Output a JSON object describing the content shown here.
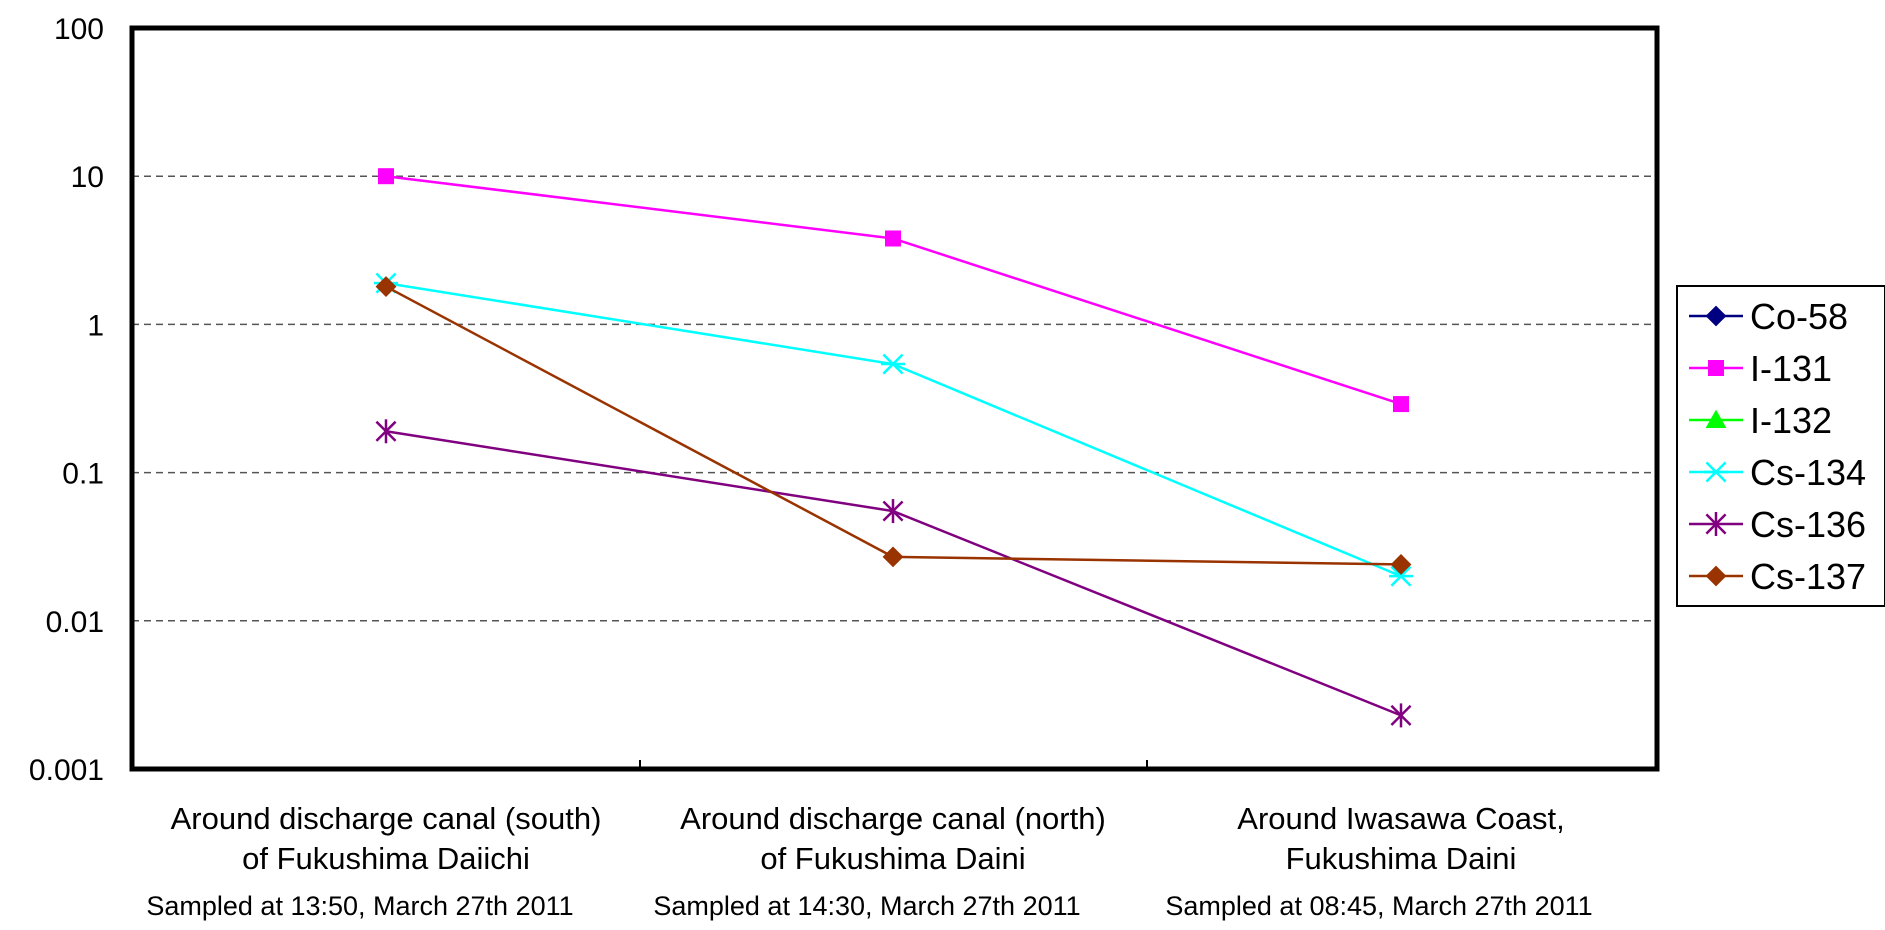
{
  "chart_data": {
    "type": "line",
    "title": "",
    "xlabel": "",
    "ylabel": "",
    "y_scale": "log",
    "ylim": [
      0.001,
      100
    ],
    "y_ticks": [
      "100",
      "10",
      "1",
      "0.1",
      "0.01",
      "0.001"
    ],
    "grid": "horizontal dashed",
    "legend_position": "right",
    "categories": [
      "Around discharge canal (south) of Fukushima Daiichi",
      "Around discharge canal (north) of Fukushima Daini",
      "Around Iwasawa Coast, Fukushima Daini"
    ],
    "category_lines": [
      [
        "Around discharge canal (south)",
        "of Fukushima Daiichi"
      ],
      [
        "Around discharge canal (north)",
        "of Fukushima Daini"
      ],
      [
        "Around Iwasawa Coast,",
        "Fukushima Daini"
      ]
    ],
    "sample_notes": [
      "Sampled at 13:50, March 27th 2011",
      "Sampled at 14:30, March 27th 2011",
      "Sampled at 08:45, March 27th 2011"
    ],
    "series": [
      {
        "name": "Co-58",
        "color": "#000080",
        "marker": "diamond",
        "values": [
          null,
          null,
          null
        ]
      },
      {
        "name": "I-131",
        "color": "#ff00ff",
        "marker": "square",
        "values": [
          10,
          3.8,
          0.29
        ]
      },
      {
        "name": "I-132",
        "color": "#00ff00",
        "marker": "triangle",
        "values": [
          null,
          null,
          null
        ]
      },
      {
        "name": "Cs-134",
        "color": "#00ffff",
        "marker": "asterisk",
        "values": [
          1.9,
          0.54,
          0.02
        ]
      },
      {
        "name": "Cs-136",
        "color": "#800080",
        "marker": "star",
        "values": [
          0.19,
          0.055,
          0.0023
        ]
      },
      {
        "name": "Cs-137",
        "color": "#993300",
        "marker": "diamond",
        "values": [
          1.8,
          0.027,
          0.024
        ]
      }
    ]
  }
}
